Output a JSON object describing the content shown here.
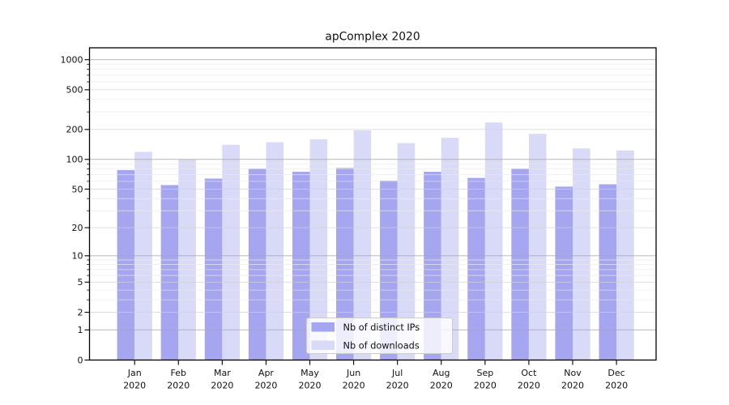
{
  "title": "apComplex 2020",
  "chart_data": {
    "type": "bar",
    "title": "apComplex 2020",
    "categories": [
      "Jan",
      "Feb",
      "Mar",
      "Apr",
      "May",
      "Jun",
      "Jul",
      "Aug",
      "Sep",
      "Oct",
      "Nov",
      "Dec"
    ],
    "xtick_year": "2020",
    "series": [
      {
        "name": "Nb of distinct IPs",
        "color": "#a5a5f0",
        "values": [
          78,
          55,
          64,
          81,
          75,
          82,
          61,
          75,
          65,
          81,
          53,
          56
        ]
      },
      {
        "name": "Nb of downloads",
        "color": "#d9d9f8",
        "values": [
          119,
          100,
          140,
          149,
          159,
          196,
          146,
          165,
          235,
          181,
          129,
          123
        ]
      }
    ],
    "yscale": "log1p",
    "yticks": [
      0,
      1,
      2,
      5,
      10,
      20,
      50,
      100,
      200,
      500,
      1000
    ],
    "ylim": [
      0,
      1315
    ],
    "grid": true,
    "legend_position": "bottom-center"
  },
  "colors": {
    "background": "#ffffff",
    "spine": "#000000",
    "decade_grid": "#a8a8a8",
    "labeled_grid": "#d2d2d2",
    "minor_grid": "#eaeaea",
    "legend_border": "#cccccc",
    "legend_bg": "#ffffff"
  }
}
